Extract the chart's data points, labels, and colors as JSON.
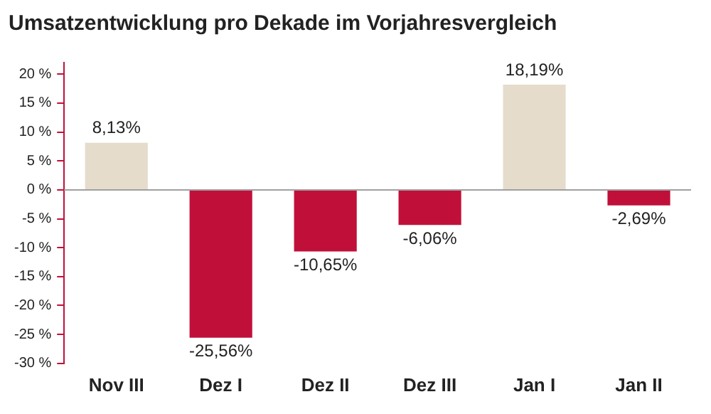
{
  "chart_data": {
    "type": "bar",
    "title": "Umsatzentwicklung pro Dekade im Vorjahresvergleich",
    "categories": [
      "Nov III",
      "Dez I",
      "Dez II",
      "Dez III",
      "Jan I",
      "Jan II"
    ],
    "values": [
      8.13,
      -25.56,
      -10.65,
      -6.06,
      18.19,
      -2.69
    ],
    "colors": [
      "#e6dccb",
      "#c0103a",
      "#c0103a",
      "#c0103a",
      "#e6dccb",
      "#c0103a"
    ],
    "value_labels": [
      "8,13%",
      "-25,56%",
      "-10,65%",
      "-6,06%",
      "18,19%",
      "-2,69%"
    ],
    "ylim": [
      -30,
      22
    ],
    "yticks": [
      {
        "value": -30,
        "label": "-30 %"
      },
      {
        "value": -25,
        "label": "-25 %"
      },
      {
        "value": -20,
        "label": "-20 %"
      },
      {
        "value": -15,
        "label": "-15 %"
      },
      {
        "value": -10,
        "label": "-10 %"
      },
      {
        "value": -5,
        "label": "-5 %"
      },
      {
        "value": 0,
        "label": "0 %"
      },
      {
        "value": 5,
        "label": "5 %"
      },
      {
        "value": 10,
        "label": "10 %"
      },
      {
        "value": 15,
        "label": "15 %"
      },
      {
        "value": 20,
        "label": "20 %"
      }
    ],
    "ref_lines": [
      {
        "axis": "y",
        "value": 0,
        "color": "#a0a0a0"
      }
    ],
    "grid": false,
    "legend": false
  }
}
